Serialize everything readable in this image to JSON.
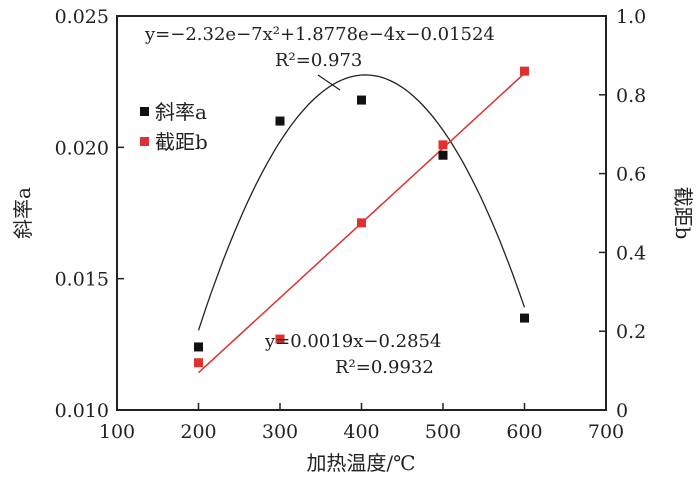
{
  "chart_data": {
    "type": "scatter",
    "xlabel": "加热温度/℃",
    "ylabel_left": "斜率a",
    "ylabel_right": "截距b",
    "xlim": [
      100,
      700
    ],
    "ylim_left": [
      0.01,
      0.025
    ],
    "ylim_right": [
      0,
      1.0
    ],
    "x_ticks": [
      "100",
      "200",
      "300",
      "400",
      "500",
      "600",
      "700"
    ],
    "y_left_ticks": [
      "0.010",
      "0.015",
      "0.020",
      "0.025"
    ],
    "y_right_ticks": [
      "0",
      "0.2",
      "0.4",
      "0.6",
      "0.8",
      "1.0"
    ],
    "legend": {
      "position": "top-left",
      "entries": [
        "斜率a",
        "截距b"
      ]
    },
    "series": [
      {
        "name": "斜率a",
        "axis": "left",
        "color": "#111111",
        "x": [
          200,
          300,
          400,
          500,
          600
        ],
        "y": [
          0.0124,
          0.021,
          0.0218,
          0.0197,
          0.0135
        ],
        "fit": {
          "type": "quadratic",
          "coef": [
            -2.32e-07,
            0.00018778,
            -0.01524
          ],
          "equation": "y=−2.32e−7x²+1.8778e−4x−0.01524",
          "r2": "R²=0.973"
        }
      },
      {
        "name": "截距b",
        "axis": "right",
        "color": "#e03030",
        "x": [
          200,
          300,
          400,
          500,
          600
        ],
        "y": [
          0.12,
          0.18,
          0.475,
          0.673,
          0.86
        ],
        "fit": {
          "type": "linear",
          "coef": [
            0.0019,
            -0.2854
          ],
          "equation": "y=0.0019x−0.2854",
          "r2": "R²=0.9932"
        }
      }
    ]
  }
}
